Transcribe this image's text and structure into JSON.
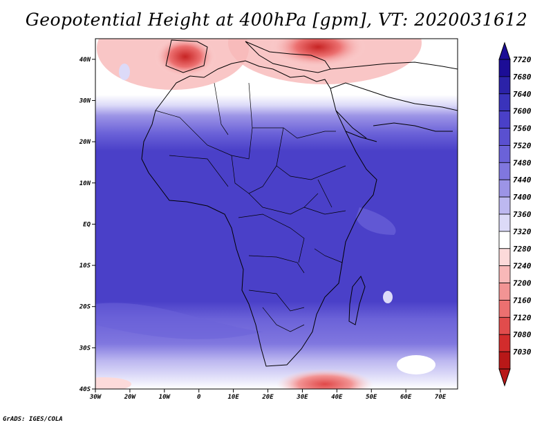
{
  "title": "Geopotential Height at 400hPa [gpm], VT: 2020031612",
  "credit": "GrADS: IGES/COLA",
  "map": {
    "lon_range": [
      -30,
      75
    ],
    "lat_range": [
      -40,
      45
    ],
    "lon_ticks": [
      "30W",
      "20W",
      "10W",
      "0",
      "10E",
      "20E",
      "30E",
      "40E",
      "50E",
      "60E",
      "70E"
    ],
    "lat_ticks": [
      "40N",
      "30N",
      "20N",
      "10N",
      "EQ",
      "10S",
      "20S",
      "30S",
      "40S"
    ]
  },
  "colorbar": {
    "levels": [
      "7720",
      "7680",
      "7640",
      "7600",
      "7560",
      "7520",
      "7480",
      "7440",
      "7400",
      "7360",
      "7320",
      "7280",
      "7240",
      "7200",
      "7160",
      "7120",
      "7080",
      "7030"
    ],
    "colors": [
      "#1c0d96",
      "#2b22a8",
      "#3a33bb",
      "#4a40c8",
      "#5a50d0",
      "#6b62d8",
      "#8077df",
      "#9c94e6",
      "#bdb8f0",
      "#dcdaf8",
      "#ffffff",
      "#fcdada",
      "#f8b8b8",
      "#f29494",
      "#ec7070",
      "#e14c4c",
      "#d22c2c",
      "#b81818"
    ]
  }
}
